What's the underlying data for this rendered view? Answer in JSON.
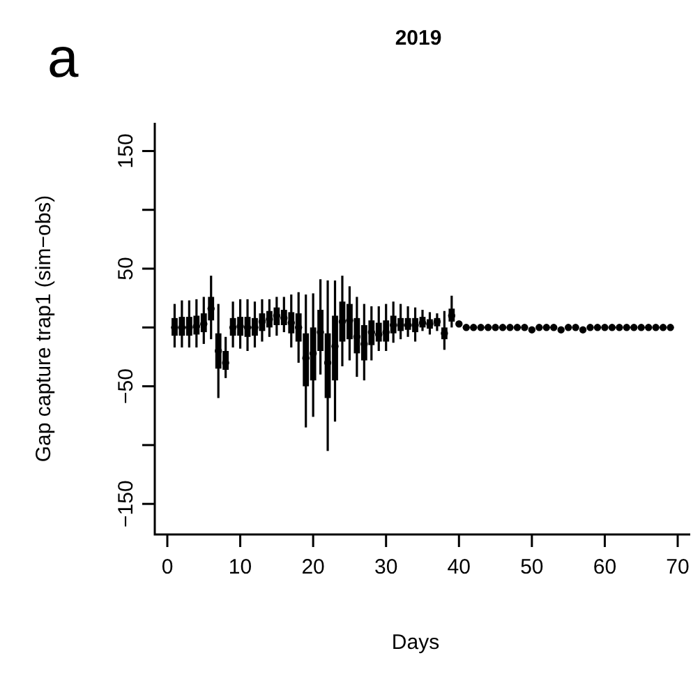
{
  "chart_data": {
    "type": "box",
    "title": "2019",
    "xlabel": "Days",
    "ylabel": "Gap capture trap1 (sim−obs)",
    "annotations": [
      "a"
    ],
    "series": [
      {
        "type": "scatter",
        "color": "#000000",
        "marker": "circle",
        "x": [
          40,
          41,
          42,
          43,
          44,
          45,
          46,
          47,
          48,
          49,
          50,
          51,
          52,
          53,
          54,
          55,
          56,
          57,
          58,
          59,
          60,
          61,
          62,
          63,
          64,
          65,
          66,
          67,
          68,
          69
        ],
        "values": [
          3,
          0,
          0,
          0,
          0,
          0,
          0,
          0,
          0,
          0,
          -2,
          0,
          0,
          0,
          -2,
          0,
          0,
          -2,
          0,
          0,
          0,
          0,
          0,
          0,
          0,
          0,
          0,
          0,
          0,
          0
        ]
      },
      {
        "color": "#000000",
        "x": [
          1,
          2,
          3,
          4,
          5,
          6,
          7,
          8,
          9,
          10,
          11,
          12,
          13,
          14,
          15,
          16,
          17,
          18,
          19,
          20,
          21,
          22,
          23,
          24,
          25,
          26,
          27,
          28,
          29,
          30,
          31,
          32,
          33,
          34,
          35,
          36,
          37,
          38,
          39
        ],
        "boxes": [
          {
            "low": -17,
            "q1": -7,
            "median": 0,
            "q3": 8,
            "high": 20
          },
          {
            "low": -17,
            "q1": -7,
            "median": 0,
            "q3": 9,
            "high": 23
          },
          {
            "low": -17,
            "q1": -7,
            "median": 0,
            "q3": 9,
            "high": 23
          },
          {
            "low": -17,
            "q1": -6,
            "median": 1,
            "q3": 10,
            "high": 24
          },
          {
            "low": -14,
            "q1": -4,
            "median": 3,
            "q3": 12,
            "high": 26
          },
          {
            "low": -10,
            "q1": 6,
            "median": 16,
            "q3": 26,
            "high": 44
          },
          {
            "low": -60,
            "q1": -35,
            "median": -20,
            "q3": -5,
            "high": 20
          },
          {
            "low": -43,
            "q1": -36,
            "median": -30,
            "q3": -20,
            "high": -8
          },
          {
            "low": -17,
            "q1": -7,
            "median": 0,
            "q3": 8,
            "high": 22
          },
          {
            "low": -18,
            "q1": -7,
            "median": 1,
            "q3": 9,
            "high": 24
          },
          {
            "low": -20,
            "q1": -8,
            "median": 0,
            "q3": 9,
            "high": 24
          },
          {
            "low": -17,
            "q1": -7,
            "median": 0,
            "q3": 8,
            "high": 22
          },
          {
            "low": -12,
            "q1": -3,
            "median": 5,
            "q3": 12,
            "high": 24
          },
          {
            "low": -8,
            "q1": 0,
            "median": 7,
            "q3": 14,
            "high": 24
          },
          {
            "low": -7,
            "q1": 2,
            "median": 10,
            "q3": 17,
            "high": 26
          },
          {
            "low": -4,
            "q1": 2,
            "median": 8,
            "q3": 15,
            "high": 26
          },
          {
            "low": -17,
            "q1": -5,
            "median": 4,
            "q3": 13,
            "high": 28
          },
          {
            "low": -30,
            "q1": -12,
            "median": 0,
            "q3": 12,
            "high": 30
          },
          {
            "low": -85,
            "q1": -50,
            "median": -26,
            "q3": -5,
            "high": 28
          },
          {
            "low": -76,
            "q1": -45,
            "median": -22,
            "q3": 0,
            "high": 29
          },
          {
            "low": -40,
            "q1": -20,
            "median": -4,
            "q3": 15,
            "high": 41
          },
          {
            "low": -105,
            "q1": -60,
            "median": -30,
            "q3": -5,
            "high": 40
          },
          {
            "low": -80,
            "q1": -45,
            "median": -16,
            "q3": 10,
            "high": 40
          },
          {
            "low": -33,
            "q1": -12,
            "median": 5,
            "q3": 22,
            "high": 44
          },
          {
            "low": -28,
            "q1": -10,
            "median": 6,
            "q3": 20,
            "high": 35
          },
          {
            "low": -42,
            "q1": -22,
            "median": -8,
            "q3": 8,
            "high": 26
          },
          {
            "low": -45,
            "q1": -28,
            "median": -14,
            "q3": 2,
            "high": 20
          },
          {
            "low": -28,
            "q1": -15,
            "median": -4,
            "q3": 6,
            "high": 18
          },
          {
            "low": -20,
            "q1": -12,
            "median": -6,
            "q3": 4,
            "high": 18
          },
          {
            "low": -20,
            "q1": -12,
            "median": -4,
            "q3": 6,
            "high": 20
          },
          {
            "low": -13,
            "q1": -5,
            "median": 2,
            "q3": 10,
            "high": 22
          },
          {
            "low": -10,
            "q1": -3,
            "median": 2,
            "q3": 8,
            "high": 20
          },
          {
            "low": -8,
            "q1": -2,
            "median": 2,
            "q3": 8,
            "high": 18
          },
          {
            "low": -12,
            "q1": -4,
            "median": 2,
            "q3": 8,
            "high": 17
          },
          {
            "low": -3,
            "q1": 0,
            "median": 4,
            "q3": 9,
            "high": 15
          },
          {
            "low": -6,
            "q1": -1,
            "median": 3,
            "q3": 7,
            "high": 13
          },
          {
            "low": -3,
            "q1": 1,
            "median": 5,
            "q3": 8,
            "high": 12
          },
          {
            "low": -19,
            "q1": -10,
            "median": -5,
            "q3": 0,
            "high": 14
          },
          {
            "low": 0,
            "q1": 5,
            "median": 10,
            "q3": 16,
            "high": 27
          }
        ]
      }
    ],
    "xlim": [
      -1.72,
      71.72
    ],
    "xticks": [
      0,
      10,
      20,
      30,
      40,
      50,
      60,
      70
    ],
    "ylim": [
      -176,
      174
    ],
    "yticks": [
      {
        "value": -150,
        "label": "−150"
      },
      {
        "value": -100,
        "label": null
      },
      {
        "value": -50,
        "label": "−50"
      },
      {
        "value": 0,
        "label": null
      },
      {
        "value": 50,
        "label": "50"
      },
      {
        "value": 100,
        "label": null
      },
      {
        "value": 150,
        "label": "150"
      }
    ]
  }
}
